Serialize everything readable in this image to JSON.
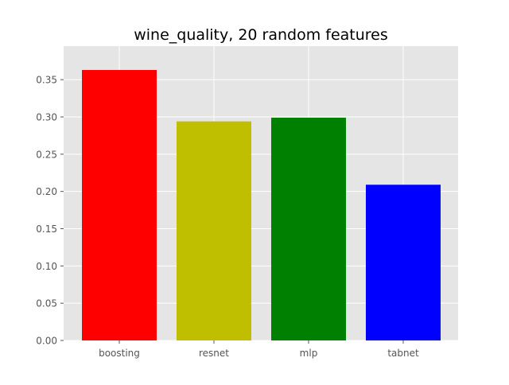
{
  "chart_data": {
    "type": "bar",
    "title": "wine_quality, 20 random features",
    "categories": [
      "boosting",
      "resnet",
      "mlp",
      "tabnet"
    ],
    "values": [
      0.363,
      0.294,
      0.299,
      0.209
    ],
    "colors": [
      "#ff0000",
      "#bfbf00",
      "#008000",
      "#0000ff"
    ],
    "ylim": [
      0,
      0.395
    ],
    "yticks": [
      0.0,
      0.05,
      0.1,
      0.15,
      0.2,
      0.25,
      0.3,
      0.35
    ],
    "ytick_labels": [
      "0.00",
      "0.05",
      "0.10",
      "0.15",
      "0.20",
      "0.25",
      "0.30",
      "0.35"
    ],
    "xlabel": "",
    "ylabel": "",
    "grid": true,
    "style": {
      "background": "#e5e5e5",
      "grid_color": "#ffffff",
      "tick_label_color": "#555555",
      "title_color": "#000000"
    }
  }
}
